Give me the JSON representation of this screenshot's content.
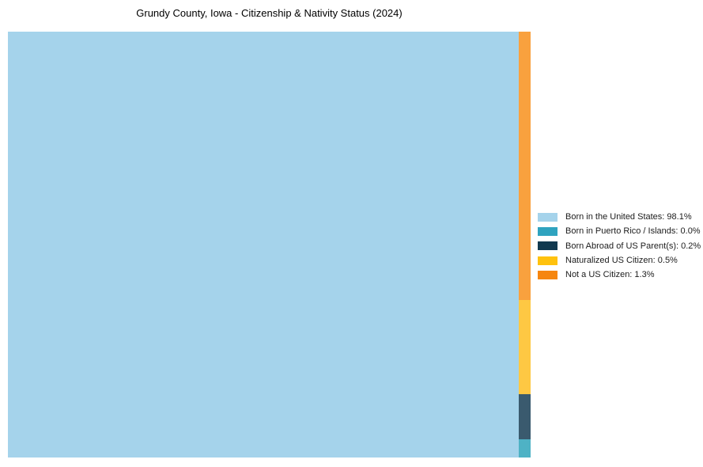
{
  "chart_data": {
    "type": "treemap",
    "title": "Grundy County, Iowa - Citizenship & Nativity Status (2024)",
    "legend_position": "right",
    "background_color": "#ffffff",
    "series": [
      {
        "id": "born-in-the-united-states",
        "label": "Born in the United States",
        "value_pct": 98.1,
        "legend_display": "Born in the United States: 98.1%",
        "legend_color": "#A5D3EB",
        "fill_color": "#A5D3EB"
      },
      {
        "id": "born-in-puerto-rico-islands",
        "label": "Born in Puerto Rico / Islands",
        "value_pct": 0.0,
        "legend_display": "Born in Puerto Rico / Islands: 0.0%",
        "legend_color": "#2FA3BF",
        "fill_color": "#4EB2C5"
      },
      {
        "id": "born-abroad-of-us-parents",
        "label": "Born Abroad of US Parent(s)",
        "value_pct": 0.2,
        "legend_display": "Born Abroad of US Parent(s): 0.2%",
        "legend_color": "#11394F",
        "fill_color": "#3A5A6E"
      },
      {
        "id": "naturalized-us-citizen",
        "label": "Naturalized US Citizen",
        "value_pct": 0.5,
        "legend_display": "Naturalized US Citizen: 0.5%",
        "legend_color": "#FFC20E",
        "fill_color": "#FEC843"
      },
      {
        "id": "not-a-us-citizen",
        "label": "Not a US Citizen",
        "value_pct": 1.3,
        "legend_display": "Not a US Citizen: 1.3%",
        "legend_color": "#F6860F",
        "fill_color": "#F9A13E"
      }
    ]
  }
}
